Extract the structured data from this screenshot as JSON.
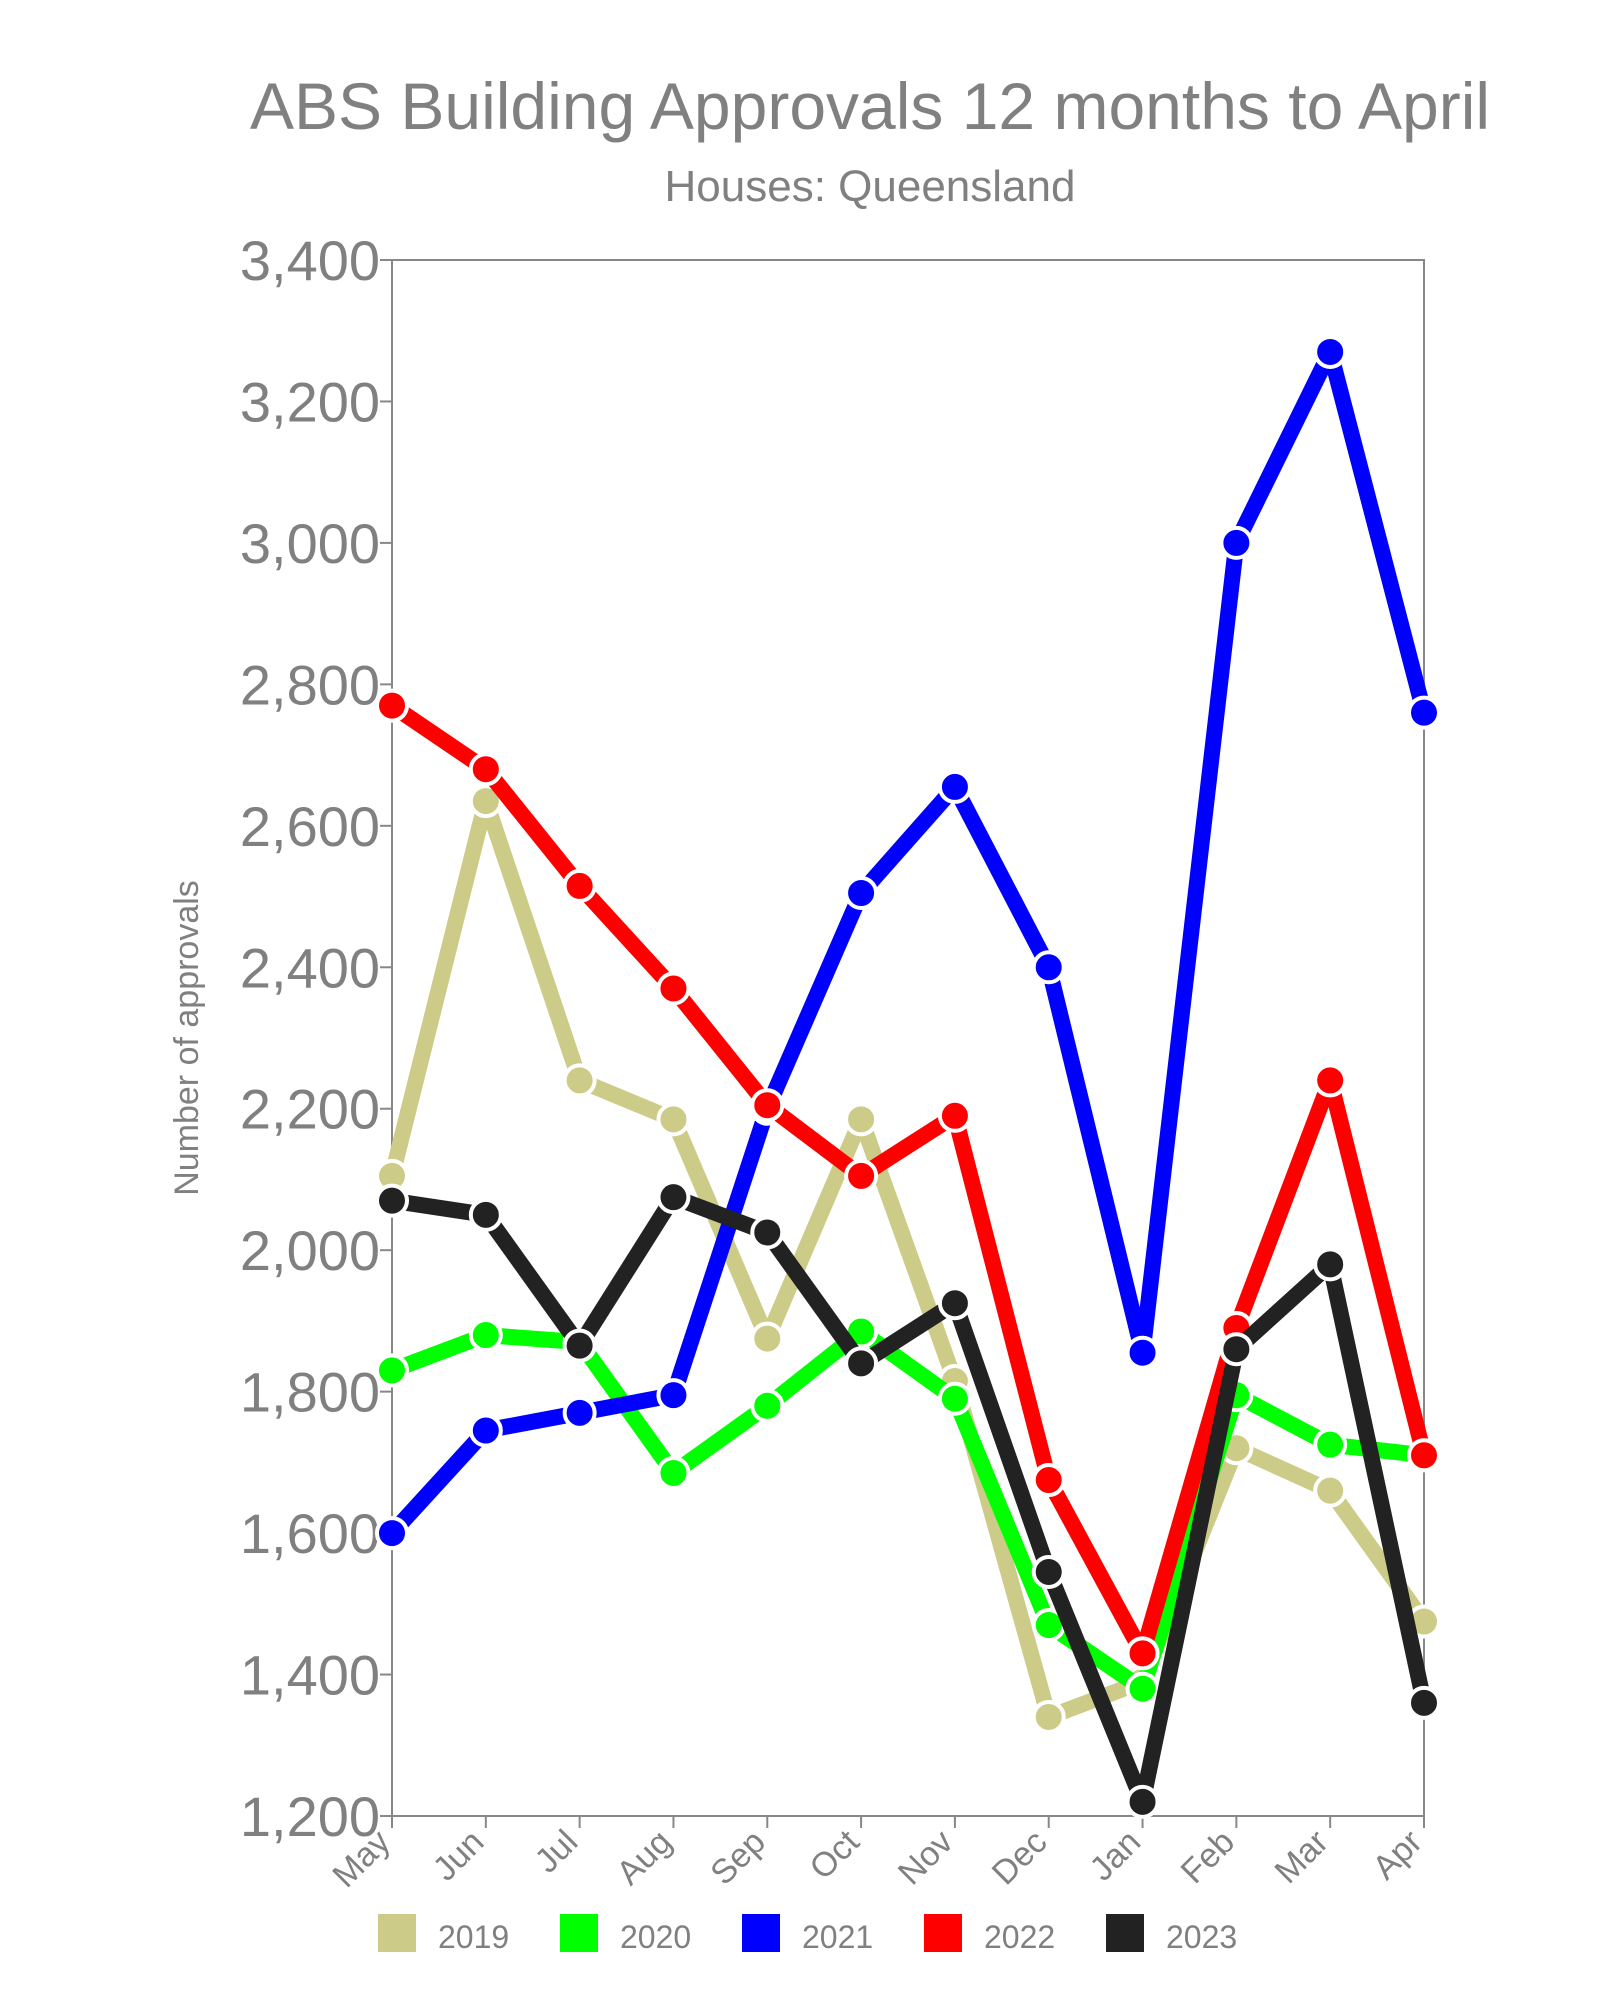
{
  "chart_data": {
    "type": "line",
    "title": "ABS Building Approvals 12 months to April",
    "subtitle": "Houses: Queensland",
    "xlabel": "",
    "ylabel": "Number of approvals",
    "categories": [
      "May",
      "Jun",
      "Jul",
      "Aug",
      "Sep",
      "Oct",
      "Nov",
      "Dec",
      "Jan",
      "Feb",
      "Mar",
      "Apr"
    ],
    "ylim": [
      1200,
      3400
    ],
    "yticks": [
      1200,
      1400,
      1600,
      1800,
      2000,
      2200,
      2400,
      2600,
      2800,
      3000,
      3200,
      3400
    ],
    "ytick_labels": [
      "1,200",
      "1,400",
      "1,600",
      "1,800",
      "2,000",
      "2,200",
      "2,400",
      "2,600",
      "2,800",
      "3,000",
      "3,200",
      "3,400"
    ],
    "grid": false,
    "legend_position": "bottom",
    "series": [
      {
        "name": "2019",
        "color": "#cccc88",
        "values": [
          2105,
          2635,
          2240,
          2185,
          1875,
          2185,
          1815,
          1340,
          1390,
          1720,
          1660,
          1475
        ]
      },
      {
        "name": "2020",
        "color": "#00ff00",
        "values": [
          1830,
          1880,
          1870,
          1685,
          1780,
          1885,
          1790,
          1470,
          1380,
          1795,
          1725,
          1710
        ]
      },
      {
        "name": "2021",
        "color": "#0000ff",
        "values": [
          1600,
          1745,
          1770,
          1795,
          2200,
          2505,
          2655,
          2400,
          1855,
          3000,
          3270,
          2760
        ]
      },
      {
        "name": "2022",
        "color": "#ff0000",
        "values": [
          2770,
          2680,
          2515,
          2370,
          2205,
          2105,
          2190,
          1675,
          1430,
          1890,
          2240,
          1710
        ]
      },
      {
        "name": "2023",
        "color": "#222222",
        "values": [
          2070,
          2050,
          1865,
          2075,
          2025,
          1840,
          1925,
          1545,
          1220,
          1860,
          1980,
          1360
        ]
      }
    ]
  }
}
